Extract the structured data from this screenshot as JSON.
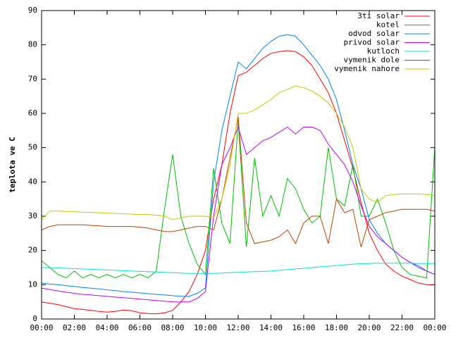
{
  "chart_data": {
    "type": "line",
    "y_label": "teplota ve C",
    "x": [
      0,
      0.5,
      1,
      1.5,
      2,
      2.5,
      3,
      3.5,
      4,
      4.5,
      5,
      5.5,
      6,
      6.5,
      7,
      7.5,
      8,
      8.5,
      9,
      9.5,
      10,
      10.5,
      11,
      11.5,
      12,
      12.5,
      13,
      13.5,
      14,
      14.5,
      15,
      15.5,
      16,
      16.5,
      17,
      17.5,
      18,
      18.5,
      19,
      19.5,
      20,
      20.5,
      21,
      21.5,
      22,
      22.5,
      23,
      23.5,
      24
    ],
    "xlim": [
      0,
      24
    ],
    "xticks": [
      {
        "value": 0,
        "label": "00:00"
      },
      {
        "value": 2,
        "label": "02:00"
      },
      {
        "value": 4,
        "label": "04:00"
      },
      {
        "value": 6,
        "label": "06:00"
      },
      {
        "value": 8,
        "label": "08:00"
      },
      {
        "value": 10,
        "label": "10:00"
      },
      {
        "value": 12,
        "label": "12:00"
      },
      {
        "value": 14,
        "label": "14:00"
      },
      {
        "value": 16,
        "label": "16:00"
      },
      {
        "value": 18,
        "label": "18:00"
      },
      {
        "value": 20,
        "label": "20:00"
      },
      {
        "value": 22,
        "label": "22:00"
      },
      {
        "value": 24,
        "label": "00:00"
      }
    ],
    "ylim": [
      0,
      90
    ],
    "yticks": [
      0,
      10,
      20,
      30,
      40,
      50,
      60,
      70,
      80,
      90
    ],
    "legend": "top-right",
    "series": [
      {
        "name": "3ti solar",
        "color": "#ff0000",
        "values": [
          5,
          4.6,
          4.2,
          3.6,
          3.0,
          2.8,
          2.5,
          2.2,
          2,
          2.2,
          2.6,
          2.4,
          1.8,
          1.6,
          1.5,
          1.8,
          2.5,
          5,
          8,
          13,
          20,
          35,
          45,
          60,
          71,
          72,
          74,
          76,
          77.5,
          78,
          78.3,
          78,
          76.5,
          74,
          70,
          66,
          60,
          52,
          44,
          34,
          25,
          20,
          16,
          14,
          12.5,
          11.5,
          10.5,
          10,
          10
        ]
      },
      {
        "name": "kotel",
        "color": "#00c000",
        "values": [
          17,
          15,
          13,
          12,
          14,
          12,
          13,
          12,
          13,
          12,
          13,
          12,
          13,
          12,
          14,
          32,
          48,
          30,
          22,
          16,
          13,
          44,
          28,
          22,
          58,
          21,
          47,
          30,
          36,
          30,
          41,
          38,
          32,
          28,
          30,
          50,
          35,
          33,
          45,
          30,
          30,
          35,
          28,
          20,
          15,
          13,
          12.5,
          12,
          50
        ]
      },
      {
        "name": "odvod solar",
        "color": "#0080ff",
        "values": [
          10.5,
          10.2,
          10,
          9.7,
          9.5,
          9.2,
          9,
          8.8,
          8.5,
          8.3,
          8,
          7.8,
          7.6,
          7.4,
          7.2,
          7,
          6.8,
          6.6,
          6.6,
          7.5,
          9,
          40,
          55,
          65,
          75,
          73,
          76,
          79,
          81,
          82.5,
          83,
          82.5,
          80,
          77,
          74,
          70,
          64,
          55,
          45,
          38,
          29,
          25,
          22,
          20,
          18,
          16.5,
          15,
          14,
          13
        ]
      },
      {
        "name": "privod solar",
        "color": "#c000ff",
        "values": [
          9,
          8.6,
          8.2,
          7.8,
          7.5,
          7.2,
          7,
          6.8,
          6.6,
          6.4,
          6.2,
          6,
          5.8,
          5.6,
          5.4,
          5.2,
          5,
          5,
          5,
          6,
          8,
          30,
          45,
          50,
          56,
          48,
          50,
          52,
          53,
          54.5,
          56,
          54,
          56,
          56,
          55,
          51,
          48,
          45,
          40,
          33,
          27,
          24,
          22,
          20,
          18,
          16.5,
          15.5,
          14,
          13
        ]
      },
      {
        "name": "kutloch",
        "color": "#00e0e0",
        "values": [
          15,
          15,
          14.9,
          14.8,
          14.7,
          14.6,
          14.5,
          14.4,
          14.3,
          14.2,
          14.1,
          14,
          13.9,
          13.8,
          13.7,
          13.6,
          13.5,
          13.4,
          13.3,
          13.3,
          13.3,
          13.3,
          13.4,
          13.5,
          13.6,
          13.7,
          13.8,
          13.9,
          14,
          14.2,
          14.4,
          14.6,
          14.8,
          15,
          15.2,
          15.4,
          15.6,
          15.8,
          16,
          16.1,
          16.2,
          16.3,
          16.3,
          16.3,
          16.3,
          16.3,
          16.2,
          16.2,
          16.2
        ]
      },
      {
        "name": "vymenik dole",
        "color": "#c04000",
        "values": [
          26,
          27,
          27.5,
          27.5,
          27.5,
          27.5,
          27.3,
          27.2,
          27,
          27,
          27,
          27,
          26.8,
          26.5,
          26,
          25.5,
          25.5,
          26,
          26.5,
          27,
          27,
          26,
          35,
          47,
          59,
          28,
          22,
          22.5,
          23,
          24,
          26,
          22,
          28,
          30,
          30,
          22,
          35,
          31,
          32,
          21,
          29,
          30,
          31,
          31.5,
          32,
          32,
          32,
          32,
          31.5
        ]
      },
      {
        "name": "vymenik nahore",
        "color": "#c8c800",
        "values": [
          29,
          31.5,
          31.5,
          31.4,
          31.3,
          31.2,
          31.1,
          31,
          30.9,
          30.8,
          30.7,
          30.6,
          30.5,
          30.5,
          30.3,
          30,
          29,
          29.5,
          30,
          30,
          30,
          29.5,
          35,
          45,
          60,
          60,
          61,
          62.5,
          64,
          66,
          67,
          68,
          67.5,
          66.5,
          65,
          63,
          60,
          56,
          50,
          38,
          35,
          34,
          36,
          36.3,
          36.5,
          36.5,
          36.5,
          36.3,
          36
        ]
      }
    ]
  }
}
